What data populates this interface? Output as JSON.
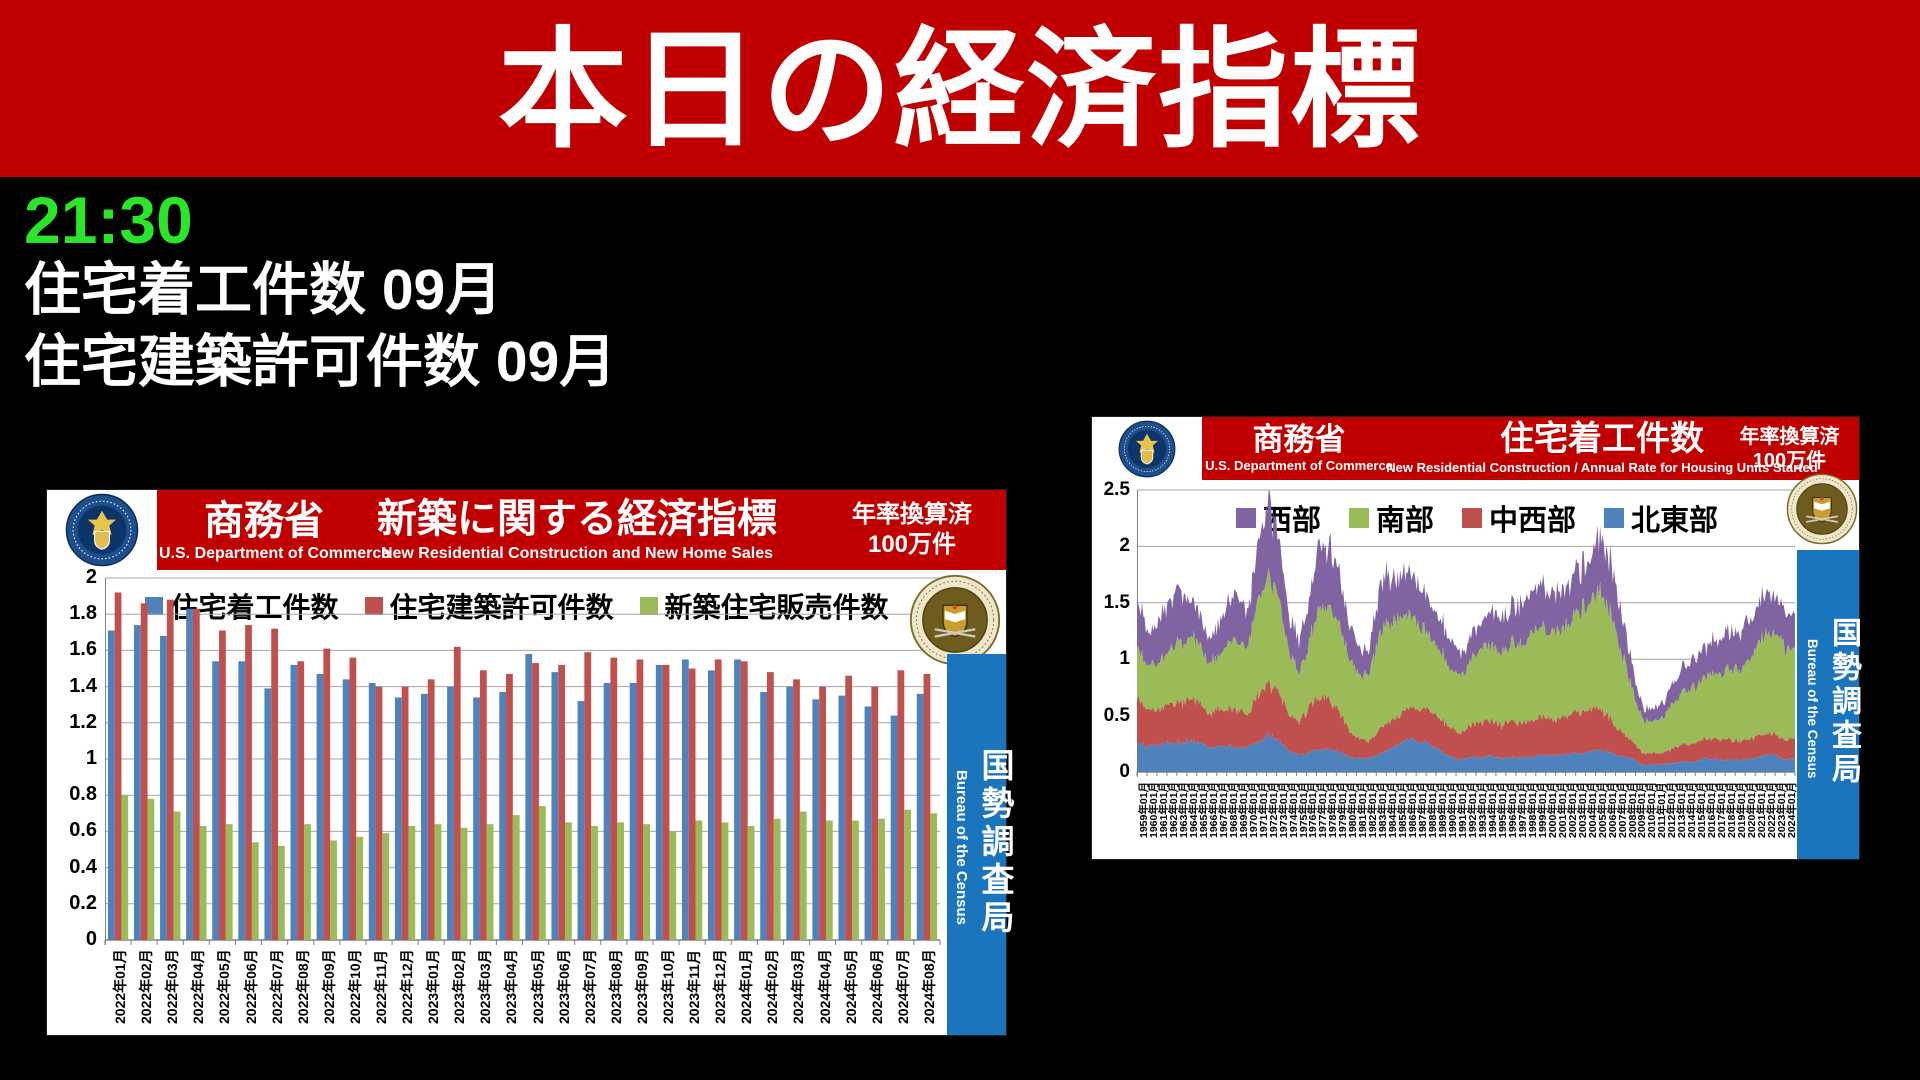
{
  "header": {
    "title": "本日の経済指標"
  },
  "schedule": {
    "time": "21:30",
    "event1": "住宅着工件数 09月",
    "event2": "住宅建築許可件数 09月"
  },
  "colors": {
    "header_red": "#C00000",
    "time_green": "#2BE52B",
    "sidebar_blue": "#1B75BC"
  },
  "left_chart": {
    "agency_ja": "商務省",
    "agency_en": "U.S. Department of Commerce",
    "title_ja": "新築に関する経済指標",
    "title_en": "New Residential Construction and New Home Sales",
    "unit_line1": "年率換算済",
    "unit_line2": "100万件",
    "sidebar_ja": "国勢調査局",
    "sidebar_en": "Bureau of the Census"
  },
  "right_chart": {
    "agency_ja": "商務省",
    "agency_en": "U.S. Department of Commerce",
    "title_ja": "住宅着工件数",
    "title_en": "New Residential Construction / Annual Rate for Housing Units Started",
    "unit_line1": "年率換算済",
    "unit_line2": "100万件",
    "sidebar_ja": "国勢調査局",
    "sidebar_en": "Bureau of the Census"
  },
  "chart_data": [
    {
      "type": "bar",
      "title": "新築に関する経済指標",
      "subtitle": "New Residential Construction and New Home Sales",
      "ylim": [
        0,
        2
      ],
      "ytick": 0.2,
      "ytick_labels": [
        "0",
        "0.2",
        "0.4",
        "0.6",
        "0.8",
        "1",
        "1.2",
        "1.4",
        "1.6",
        "1.8",
        "2"
      ],
      "grid": true,
      "legend_position": "top",
      "categories": [
        "2022年01月",
        "2022年02月",
        "2022年03月",
        "2022年04月",
        "2022年05月",
        "2022年06月",
        "2022年07月",
        "2022年08月",
        "2022年09月",
        "2022年10月",
        "2022年11月",
        "2022年12月",
        "2023年01月",
        "2023年02月",
        "2023年03月",
        "2023年04月",
        "2023年05月",
        "2023年06月",
        "2023年07月",
        "2023年08月",
        "2023年09月",
        "2023年10月",
        "2023年11月",
        "2023年12月",
        "2024年01月",
        "2024年02月",
        "2024年03月",
        "2024年04月",
        "2024年05月",
        "2024年06月",
        "2024年07月",
        "2024年08月"
      ],
      "series": [
        {
          "name": "住宅着工件数",
          "color": "#4F81BD",
          "values": [
            1.71,
            1.74,
            1.68,
            1.83,
            1.54,
            1.54,
            1.39,
            1.52,
            1.47,
            1.44,
            1.42,
            1.34,
            1.36,
            1.4,
            1.34,
            1.37,
            1.58,
            1.48,
            1.32,
            1.42,
            1.42,
            1.52,
            1.55,
            1.49,
            1.55,
            1.37,
            1.4,
            1.33,
            1.35,
            1.29,
            1.24,
            1.36
          ]
        },
        {
          "name": "住宅建築許可件数",
          "color": "#C0504D",
          "values": [
            1.92,
            1.86,
            1.88,
            1.83,
            1.71,
            1.74,
            1.72,
            1.54,
            1.61,
            1.56,
            1.4,
            1.4,
            1.44,
            1.62,
            1.49,
            1.47,
            1.53,
            1.52,
            1.59,
            1.56,
            1.55,
            1.52,
            1.5,
            1.55,
            1.54,
            1.48,
            1.44,
            1.4,
            1.46,
            1.4,
            1.49,
            1.47
          ]
        },
        {
          "name": "新築住宅販売件数",
          "color": "#9BBB59",
          "values": [
            0.8,
            0.78,
            0.71,
            0.63,
            0.64,
            0.54,
            0.52,
            0.64,
            0.55,
            0.57,
            0.59,
            0.63,
            0.64,
            0.62,
            0.64,
            0.69,
            0.74,
            0.65,
            0.63,
            0.65,
            0.64,
            0.6,
            0.66,
            0.65,
            0.63,
            0.67,
            0.71,
            0.66,
            0.66,
            0.67,
            0.72,
            0.7
          ]
        }
      ]
    },
    {
      "type": "area",
      "stacked": true,
      "title": "住宅着工件数",
      "subtitle": "New Residential Construction / Annual Rate for Housing Units Started",
      "ylim": [
        0,
        2.5
      ],
      "ytick": 0.5,
      "ytick_labels": [
        "0",
        "0.5",
        "1",
        "1.5",
        "2",
        "2.5"
      ],
      "grid": true,
      "legend_position": "top",
      "categories": [
        "1959年01月",
        "1960年01月",
        "1961年01月",
        "1962年01月",
        "1963年01月",
        "1964年01月",
        "1965年01月",
        "1966年01月",
        "1967年01月",
        "1968年01月",
        "1969年01月",
        "1970年01月",
        "1971年01月",
        "1972年01月",
        "1973年01月",
        "1974年01月",
        "1975年01月",
        "1976年01月",
        "1977年01月",
        "1978年01月",
        "1979年01月",
        "1980年01月",
        "1981年01月",
        "1982年01月",
        "1983年01月",
        "1984年01月",
        "1985年01月",
        "1986年01月",
        "1987年01月",
        "1988年01月",
        "1989年01月",
        "1990年01月",
        "1991年01月",
        "1992年01月",
        "1993年01月",
        "1994年01月",
        "1995年01月",
        "1996年01月",
        "1997年01月",
        "1998年01月",
        "1999年01月",
        "2000年01月",
        "2001年01月",
        "2002年01月",
        "2003年01月",
        "2004年01月",
        "2005年01月",
        "2006年01月",
        "2007年01月",
        "2008年01月",
        "2009年01月",
        "2010年01月",
        "2011年01月",
        "2012年01月",
        "2013年01月",
        "2014年01月",
        "2015年01月",
        "2016年01月",
        "2017年01月",
        "2018年01月",
        "2019年01月",
        "2020年01月",
        "2021年01月",
        "2022年01月",
        "2023年01月",
        "2024年01月"
      ],
      "series": [
        {
          "name": "北東部",
          "color": "#4F81BD",
          "values": [
            0.27,
            0.22,
            0.25,
            0.26,
            0.26,
            0.27,
            0.27,
            0.21,
            0.22,
            0.23,
            0.21,
            0.22,
            0.26,
            0.33,
            0.28,
            0.18,
            0.15,
            0.17,
            0.2,
            0.2,
            0.18,
            0.13,
            0.12,
            0.12,
            0.17,
            0.21,
            0.25,
            0.3,
            0.27,
            0.24,
            0.18,
            0.13,
            0.11,
            0.13,
            0.13,
            0.14,
            0.12,
            0.13,
            0.13,
            0.14,
            0.15,
            0.15,
            0.15,
            0.16,
            0.16,
            0.18,
            0.19,
            0.17,
            0.14,
            0.12,
            0.06,
            0.07,
            0.07,
            0.08,
            0.09,
            0.09,
            0.12,
            0.11,
            0.11,
            0.11,
            0.11,
            0.12,
            0.15,
            0.15,
            0.11,
            0.12
          ]
        },
        {
          "name": "中西部",
          "color": "#C0504D",
          "values": [
            0.41,
            0.33,
            0.32,
            0.34,
            0.35,
            0.36,
            0.37,
            0.29,
            0.33,
            0.33,
            0.32,
            0.29,
            0.43,
            0.44,
            0.44,
            0.32,
            0.29,
            0.4,
            0.46,
            0.45,
            0.35,
            0.22,
            0.17,
            0.15,
            0.22,
            0.24,
            0.25,
            0.29,
            0.3,
            0.29,
            0.29,
            0.26,
            0.24,
            0.29,
            0.3,
            0.31,
            0.29,
            0.31,
            0.3,
            0.33,
            0.34,
            0.32,
            0.33,
            0.35,
            0.37,
            0.36,
            0.36,
            0.28,
            0.21,
            0.14,
            0.1,
            0.1,
            0.1,
            0.13,
            0.15,
            0.16,
            0.17,
            0.18,
            0.18,
            0.17,
            0.17,
            0.18,
            0.19,
            0.18,
            0.17,
            0.18
          ]
        },
        {
          "name": "南部",
          "color": "#9BBB59",
          "values": [
            0.43,
            0.4,
            0.42,
            0.47,
            0.52,
            0.52,
            0.54,
            0.44,
            0.46,
            0.59,
            0.59,
            0.61,
            0.87,
            0.94,
            0.83,
            0.54,
            0.44,
            0.57,
            0.78,
            0.82,
            0.75,
            0.64,
            0.56,
            0.59,
            0.88,
            0.87,
            0.87,
            0.83,
            0.73,
            0.66,
            0.6,
            0.54,
            0.49,
            0.57,
            0.63,
            0.68,
            0.64,
            0.69,
            0.7,
            0.77,
            0.79,
            0.78,
            0.79,
            0.84,
            0.94,
            1.0,
            1.05,
            0.91,
            0.68,
            0.45,
            0.28,
            0.3,
            0.31,
            0.4,
            0.46,
            0.5,
            0.56,
            0.58,
            0.6,
            0.63,
            0.66,
            0.76,
            0.89,
            0.88,
            0.82,
            0.81
          ]
        },
        {
          "name": "西部",
          "color": "#8064A2",
          "values": [
            0.41,
            0.32,
            0.35,
            0.4,
            0.47,
            0.38,
            0.29,
            0.23,
            0.28,
            0.36,
            0.38,
            0.31,
            0.49,
            0.65,
            0.5,
            0.31,
            0.29,
            0.4,
            0.54,
            0.54,
            0.47,
            0.3,
            0.24,
            0.21,
            0.44,
            0.43,
            0.38,
            0.4,
            0.32,
            0.29,
            0.3,
            0.27,
            0.18,
            0.21,
            0.23,
            0.33,
            0.3,
            0.34,
            0.34,
            0.39,
            0.39,
            0.33,
            0.33,
            0.35,
            0.39,
            0.41,
            0.47,
            0.44,
            0.32,
            0.2,
            0.11,
            0.12,
            0.13,
            0.17,
            0.22,
            0.26,
            0.27,
            0.3,
            0.32,
            0.34,
            0.35,
            0.33,
            0.38,
            0.35,
            0.32,
            0.3
          ]
        }
      ]
    }
  ]
}
